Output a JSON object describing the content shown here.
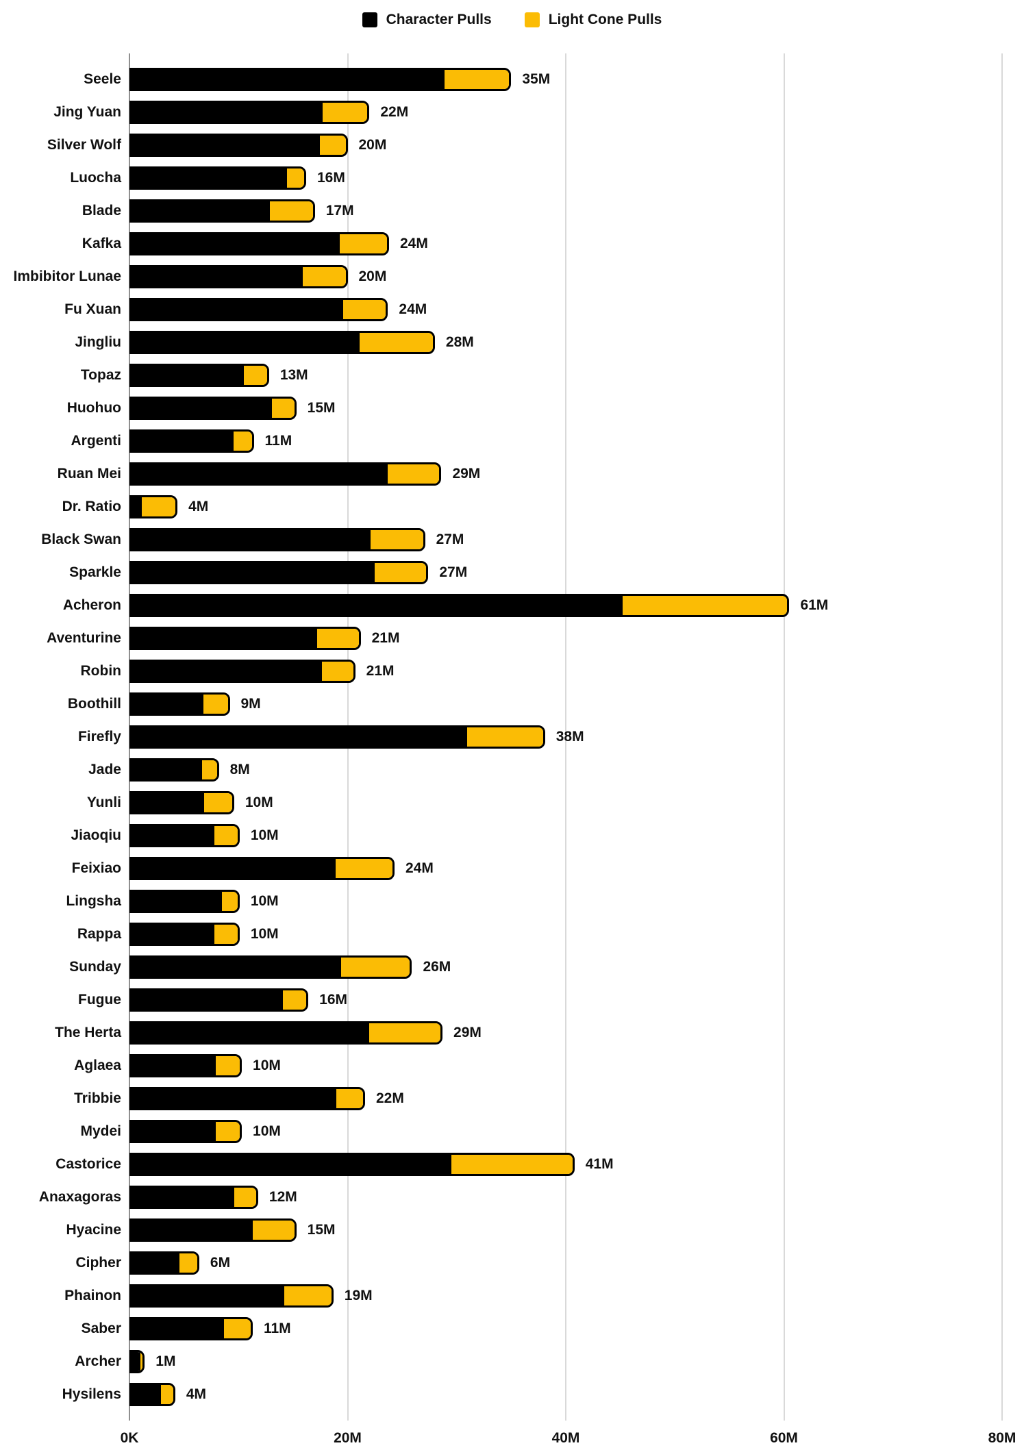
{
  "legend": {
    "character_label": "Character Pulls",
    "light_cone_label": "Light Cone Pulls"
  },
  "colors": {
    "character_pulls": "#000000",
    "light_cone_pulls": "#FBBC05",
    "grid_line": "#D9D9D9",
    "axis_line": "#8F8F8F",
    "text": "#111111",
    "background": "#FFFFFF"
  },
  "chart_data": {
    "type": "bar",
    "orientation": "horizontal",
    "stacked": true,
    "legend_position": "top-center",
    "unit": "millions of pulls",
    "x_axis": {
      "min": 0,
      "max": 80,
      "ticks": [
        {
          "label": "0K",
          "value": 0
        },
        {
          "label": "20M",
          "value": 20
        },
        {
          "label": "40M",
          "value": 40
        },
        {
          "label": "60M",
          "value": 60
        },
        {
          "label": "80M",
          "value": 80
        }
      ]
    },
    "categories": [
      "Seele",
      "Jing Yuan",
      "Silver Wolf",
      "Luocha",
      "Blade",
      "Kafka",
      "Imbibitor Lunae",
      "Fu Xuan",
      "Jingliu",
      "Topaz",
      "Huohuo",
      "Argenti",
      "Ruan Mei",
      "Dr. Ratio",
      "Black Swan",
      "Sparkle",
      "Acheron",
      "Aventurine",
      "Robin",
      "Boothill",
      "Firefly",
      "Jade",
      "Yunli",
      "Jiaoqiu",
      "Feixiao",
      "Lingsha",
      "Rappa",
      "Sunday",
      "Fugue",
      "The Herta",
      "Aglaea",
      "Tribbie",
      "Mydei",
      "Castorice",
      "Anaxagoras",
      "Hyacine",
      "Cipher",
      "Phainon",
      "Saber",
      "Archer",
      "Hysilens"
    ],
    "series": [
      {
        "name": "Character Pulls",
        "color": "#000000",
        "values": [
          29.0,
          17.8,
          17.6,
          14.6,
          13.0,
          19.4,
          16.0,
          19.7,
          21.2,
          10.6,
          13.2,
          9.7,
          23.8,
          1.0,
          22.2,
          22.6,
          45.3,
          17.3,
          17.8,
          6.9,
          31.1,
          6.8,
          6.9,
          7.9,
          19.0,
          8.6,
          7.9,
          19.5,
          14.2,
          22.1,
          8.0,
          19.1,
          8.0,
          29.6,
          9.7,
          11.4,
          4.7,
          14.3,
          8.8,
          1.1,
          3.0
        ]
      },
      {
        "name": "Light Cone Pulls",
        "color": "#FBBC05",
        "values": [
          6.0,
          4.2,
          2.4,
          1.6,
          4.0,
          4.4,
          4.0,
          4.0,
          6.8,
          2.2,
          2.1,
          1.7,
          4.8,
          3.4,
          4.9,
          4.8,
          15.2,
          3.9,
          2.9,
          2.3,
          7.0,
          1.4,
          2.7,
          2.2,
          5.3,
          1.5,
          2.2,
          6.4,
          2.2,
          6.6,
          2.3,
          2.5,
          2.3,
          11.2,
          2.1,
          3.9,
          1.7,
          4.4,
          2.5,
          0.3,
          1.2
        ]
      }
    ],
    "total_labels": [
      "35M",
      "22M",
      "20M",
      "16M",
      "17M",
      "24M",
      "20M",
      "24M",
      "28M",
      "13M",
      "15M",
      "11M",
      "29M",
      "4M",
      "27M",
      "27M",
      "61M",
      "21M",
      "21M",
      "9M",
      "38M",
      "8M",
      "10M",
      "10M",
      "24M",
      "10M",
      "10M",
      "26M",
      "16M",
      "29M",
      "10M",
      "22M",
      "10M",
      "41M",
      "12M",
      "15M",
      "6M",
      "19M",
      "11M",
      "1M",
      "4M"
    ]
  }
}
